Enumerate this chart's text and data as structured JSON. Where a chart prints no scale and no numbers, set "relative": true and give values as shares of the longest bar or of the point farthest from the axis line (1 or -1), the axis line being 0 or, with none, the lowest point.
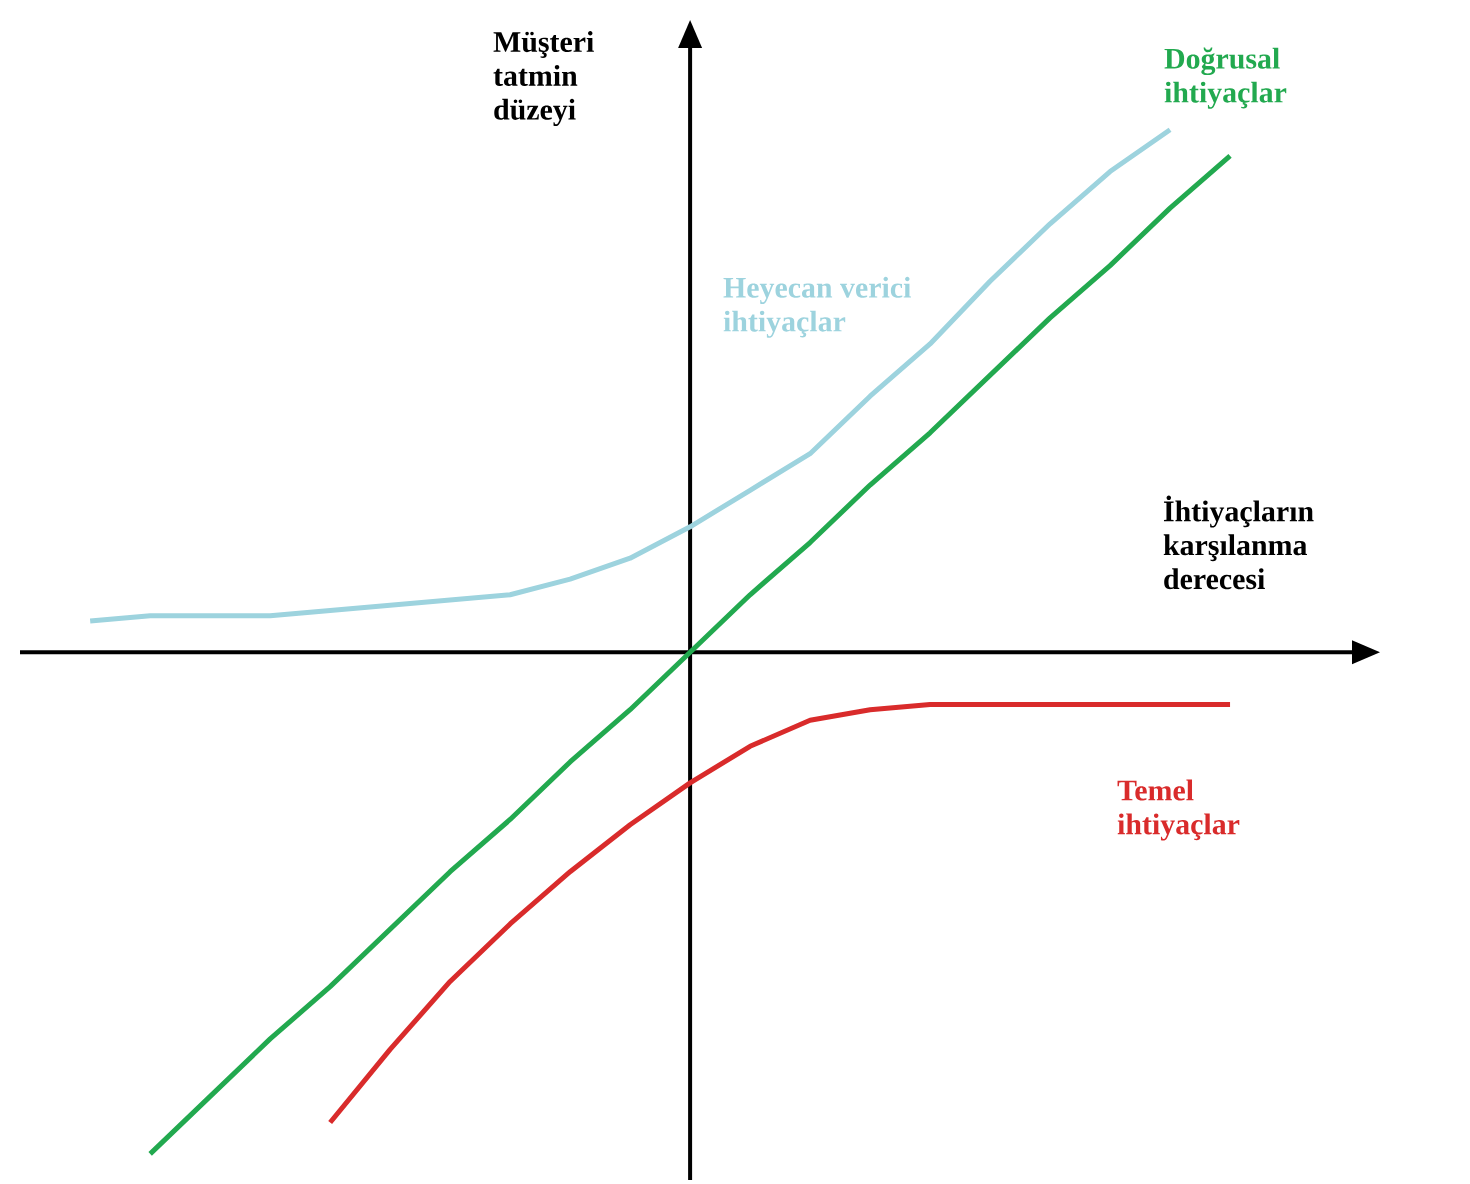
{
  "chart_data": {
    "type": "line",
    "relative": true,
    "xlabel": "İhtiyaçların karşılanma derecesi",
    "ylabel": "Müşteri tatmin düzeyi",
    "marker": "none",
    "line_style": "solid",
    "categories": [
      null,
      null,
      null,
      null,
      null,
      null,
      null,
      null,
      null,
      null,
      null,
      null,
      null,
      null,
      null,
      null,
      null,
      null,
      null,
      null,
      null
    ],
    "series": [
      {
        "name": "Heyecan verici ihtiyaçlar",
        "color": "#9dd3de",
        "values": [
          0.06,
          0.07,
          0.07,
          0.07,
          0.08,
          0.09,
          0.1,
          0.11,
          0.14,
          0.18,
          0.24,
          0.31,
          0.38,
          0.49,
          0.59,
          0.71,
          0.82,
          0.92,
          1.0,
          null,
          null
        ]
      },
      {
        "name": "Doğrusal ihtiyaçlar",
        "color": "#22a94f",
        "values": [
          null,
          -0.96,
          -0.85,
          -0.74,
          -0.64,
          -0.53,
          -0.42,
          -0.32,
          -0.21,
          -0.11,
          0,
          0.11,
          0.21,
          0.32,
          0.42,
          0.53,
          0.64,
          0.74,
          0.85,
          0.95,
          null
        ]
      },
      {
        "name": "Temel ihtiyaçlar",
        "color": "#d92b2b",
        "values": [
          null,
          null,
          null,
          null,
          -0.9,
          -0.76,
          -0.63,
          -0.52,
          -0.42,
          -0.33,
          -0.25,
          -0.18,
          -0.13,
          -0.11,
          -0.1,
          -0.1,
          -0.1,
          -0.1,
          -0.1,
          -0.1,
          null
        ]
      }
    ]
  }
}
